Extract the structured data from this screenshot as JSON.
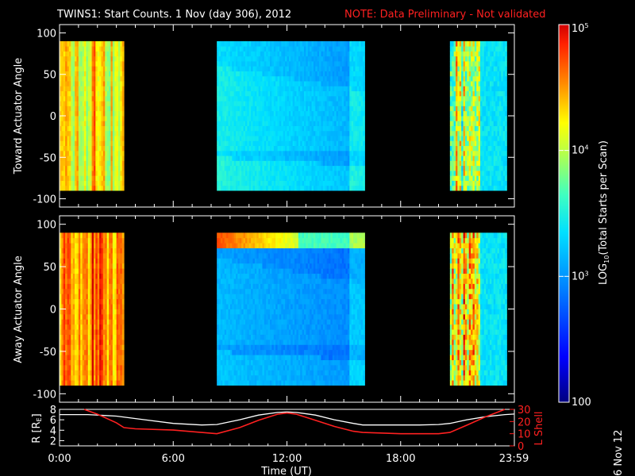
{
  "header": {
    "title": "TWINS1: Start Counts.  1 Nov (day 306), 2012",
    "note": "NOTE: Data Preliminary - Not validated"
  },
  "side_date": "6 Nov 12",
  "colors": {
    "background": "#000000",
    "axis": "#ffffff",
    "note": "#ff2020",
    "lshell_line": "#ff2020",
    "r_line": "#ffffff"
  },
  "chart_data": [
    {
      "type": "heatmap",
      "id": "toward",
      "ylabel": "Toward Actuator Angle",
      "ylim": [
        -110,
        110
      ],
      "yticks": [
        100,
        50,
        0,
        -50,
        -100
      ],
      "xlim": [
        0,
        24
      ],
      "data_intervals_hours": [
        [
          -0.3,
          3.4
        ],
        [
          8.3,
          16.1
        ],
        [
          20.6,
          23.6
        ]
      ],
      "description_levels": "Counts mostly 10^3 to 10^4; yellow/orange near 10^4 in early and late segments, cyan-blue around 10^3 mid-day"
    },
    {
      "type": "heatmap",
      "id": "away",
      "ylabel": "Away Actuator Angle",
      "ylim": [
        -110,
        110
      ],
      "yticks": [
        100,
        50,
        0,
        -50,
        -100
      ],
      "xlim": [
        0,
        24
      ],
      "data_intervals_hours": [
        [
          -0.3,
          3.4
        ],
        [
          8.3,
          16.1
        ],
        [
          20.6,
          23.6
        ]
      ],
      "description_levels": "Early/late segments orange-red near 10^4+; mid-day blue near 10^2.5 with a red band near +75 to +85 deg"
    },
    {
      "type": "line",
      "id": "ephemeris",
      "ylabel_left": "R [R",
      "ylabel_left_sub": "E",
      "ylabel_right": "L Shell",
      "ylim_left": [
        1,
        8
      ],
      "ylim_right": [
        0,
        30
      ],
      "yticks_left": [
        2,
        4,
        6,
        8
      ],
      "yticks_right": [
        0,
        10,
        20,
        30
      ],
      "xlabel": "Time (UT)",
      "xlim": [
        0,
        24
      ],
      "xtick_values": [
        0,
        6,
        12,
        18,
        23.98
      ],
      "xtick_labels": [
        "0:00",
        "6:00",
        "12:00",
        "18:00",
        "23:59"
      ],
      "series": [
        {
          "name": "R",
          "axis": "left",
          "x": [
            0,
            1.5,
            3.0,
            4.5,
            6.0,
            7.5,
            8.3,
            9.5,
            10.5,
            11.5,
            12.0,
            12.5,
            13.5,
            14.5,
            15.5,
            16.0,
            17.0,
            18.0,
            19.0,
            20.0,
            20.6,
            21.5,
            22.5,
            23.5,
            24.0
          ],
          "y": [
            7.0,
            7.0,
            6.7,
            6.0,
            5.3,
            5.0,
            5.1,
            6.0,
            6.9,
            7.4,
            7.5,
            7.4,
            6.9,
            6.0,
            5.3,
            5.0,
            5.0,
            5.0,
            5.0,
            5.1,
            5.3,
            6.0,
            6.6,
            7.0,
            7.1
          ]
        },
        {
          "name": "L Shell",
          "axis": "right",
          "x": [
            1.3,
            2.0,
            3.0,
            3.4,
            4.0,
            6.0,
            8.3,
            9.5,
            10.5,
            11.5,
            12.0,
            12.5,
            13.5,
            14.5,
            15.5,
            16.0,
            18.0,
            20.0,
            20.6,
            21.5,
            22.5,
            23.5
          ],
          "y": [
            30,
            26,
            19,
            15,
            14,
            13,
            10,
            15,
            21,
            26,
            27,
            26,
            21,
            16,
            12,
            11,
            10,
            10,
            11,
            17,
            24,
            30
          ]
        }
      ]
    },
    {
      "type": "colorbar",
      "id": "colorbar",
      "label": "LOG",
      "label_sub": "10",
      "label_rest": "(Total Starts per Scan)",
      "scale": "log",
      "range": [
        100,
        100000
      ],
      "tick_labels": [
        {
          "value": 100000,
          "base": "10",
          "exp": "5"
        },
        {
          "value": 10000,
          "base": "10",
          "exp": "4"
        },
        {
          "value": 1000,
          "base": "10",
          "exp": "3"
        },
        {
          "value": 100,
          "base": "100",
          "exp": ""
        }
      ]
    }
  ]
}
